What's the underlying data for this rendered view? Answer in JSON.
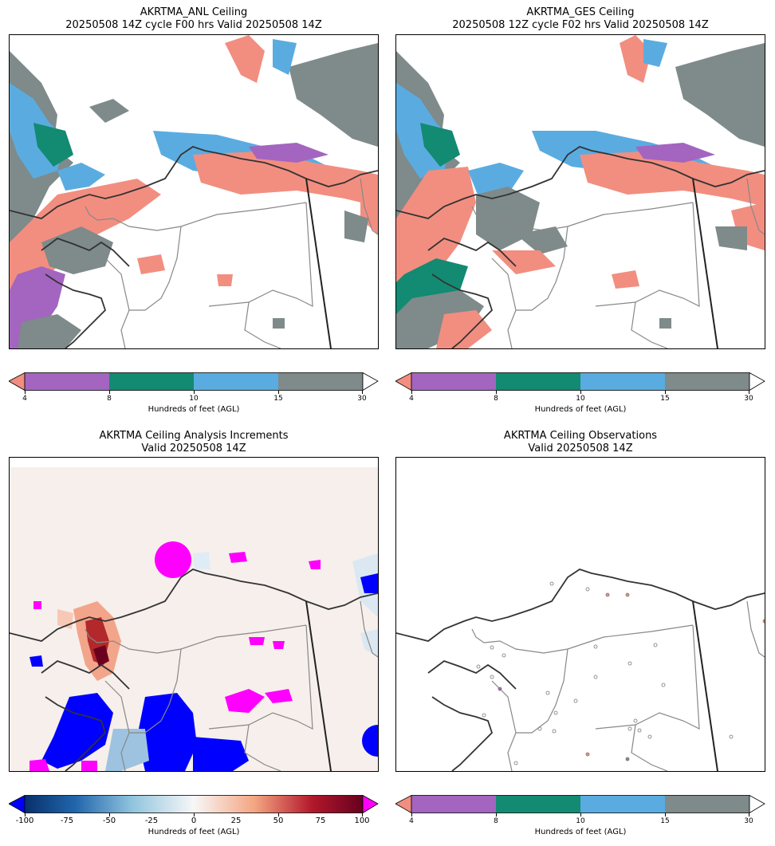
{
  "panels": {
    "anl": {
      "title_line1": "AKRTMA_ANL Ceiling",
      "title_line2": "20250508 14Z cycle F00 hrs Valid 20250508 14Z"
    },
    "ges": {
      "title_line1": "AKRTMA_GES Ceiling",
      "title_line2": "20250508 12Z cycle F02 hrs Valid 20250508 14Z"
    },
    "inc": {
      "title_line1": "AKRTMA Ceiling Analysis Increments",
      "title_line2": "Valid 20250508 14Z"
    },
    "obs": {
      "title_line1": "AKRTMA Ceiling Observations",
      "title_line2": "Valid 20250508 14Z"
    }
  },
  "ceiling_colorbar": {
    "label": "Hundreds of feet (AGL)",
    "ticks": [
      "4",
      "8",
      "10",
      "15",
      "30"
    ],
    "colors": {
      "under": "#f28e80",
      "c4_8": "#a365bf",
      "c8_10": "#138a72",
      "c10_15": "#5aace0",
      "c15_30": "#7f8a8a",
      "over": "#ffffff"
    }
  },
  "increment_colorbar": {
    "label": "Hundreds of feet (AGL)",
    "ticks": [
      "-100",
      "-75",
      "-50",
      "-25",
      "0",
      "25",
      "50",
      "75",
      "100"
    ],
    "colors": {
      "under": "#0000ff",
      "over": "#ff00ff",
      "low": "#08306b",
      "mid": "#f7f7f7",
      "high": "#67001f"
    }
  }
}
